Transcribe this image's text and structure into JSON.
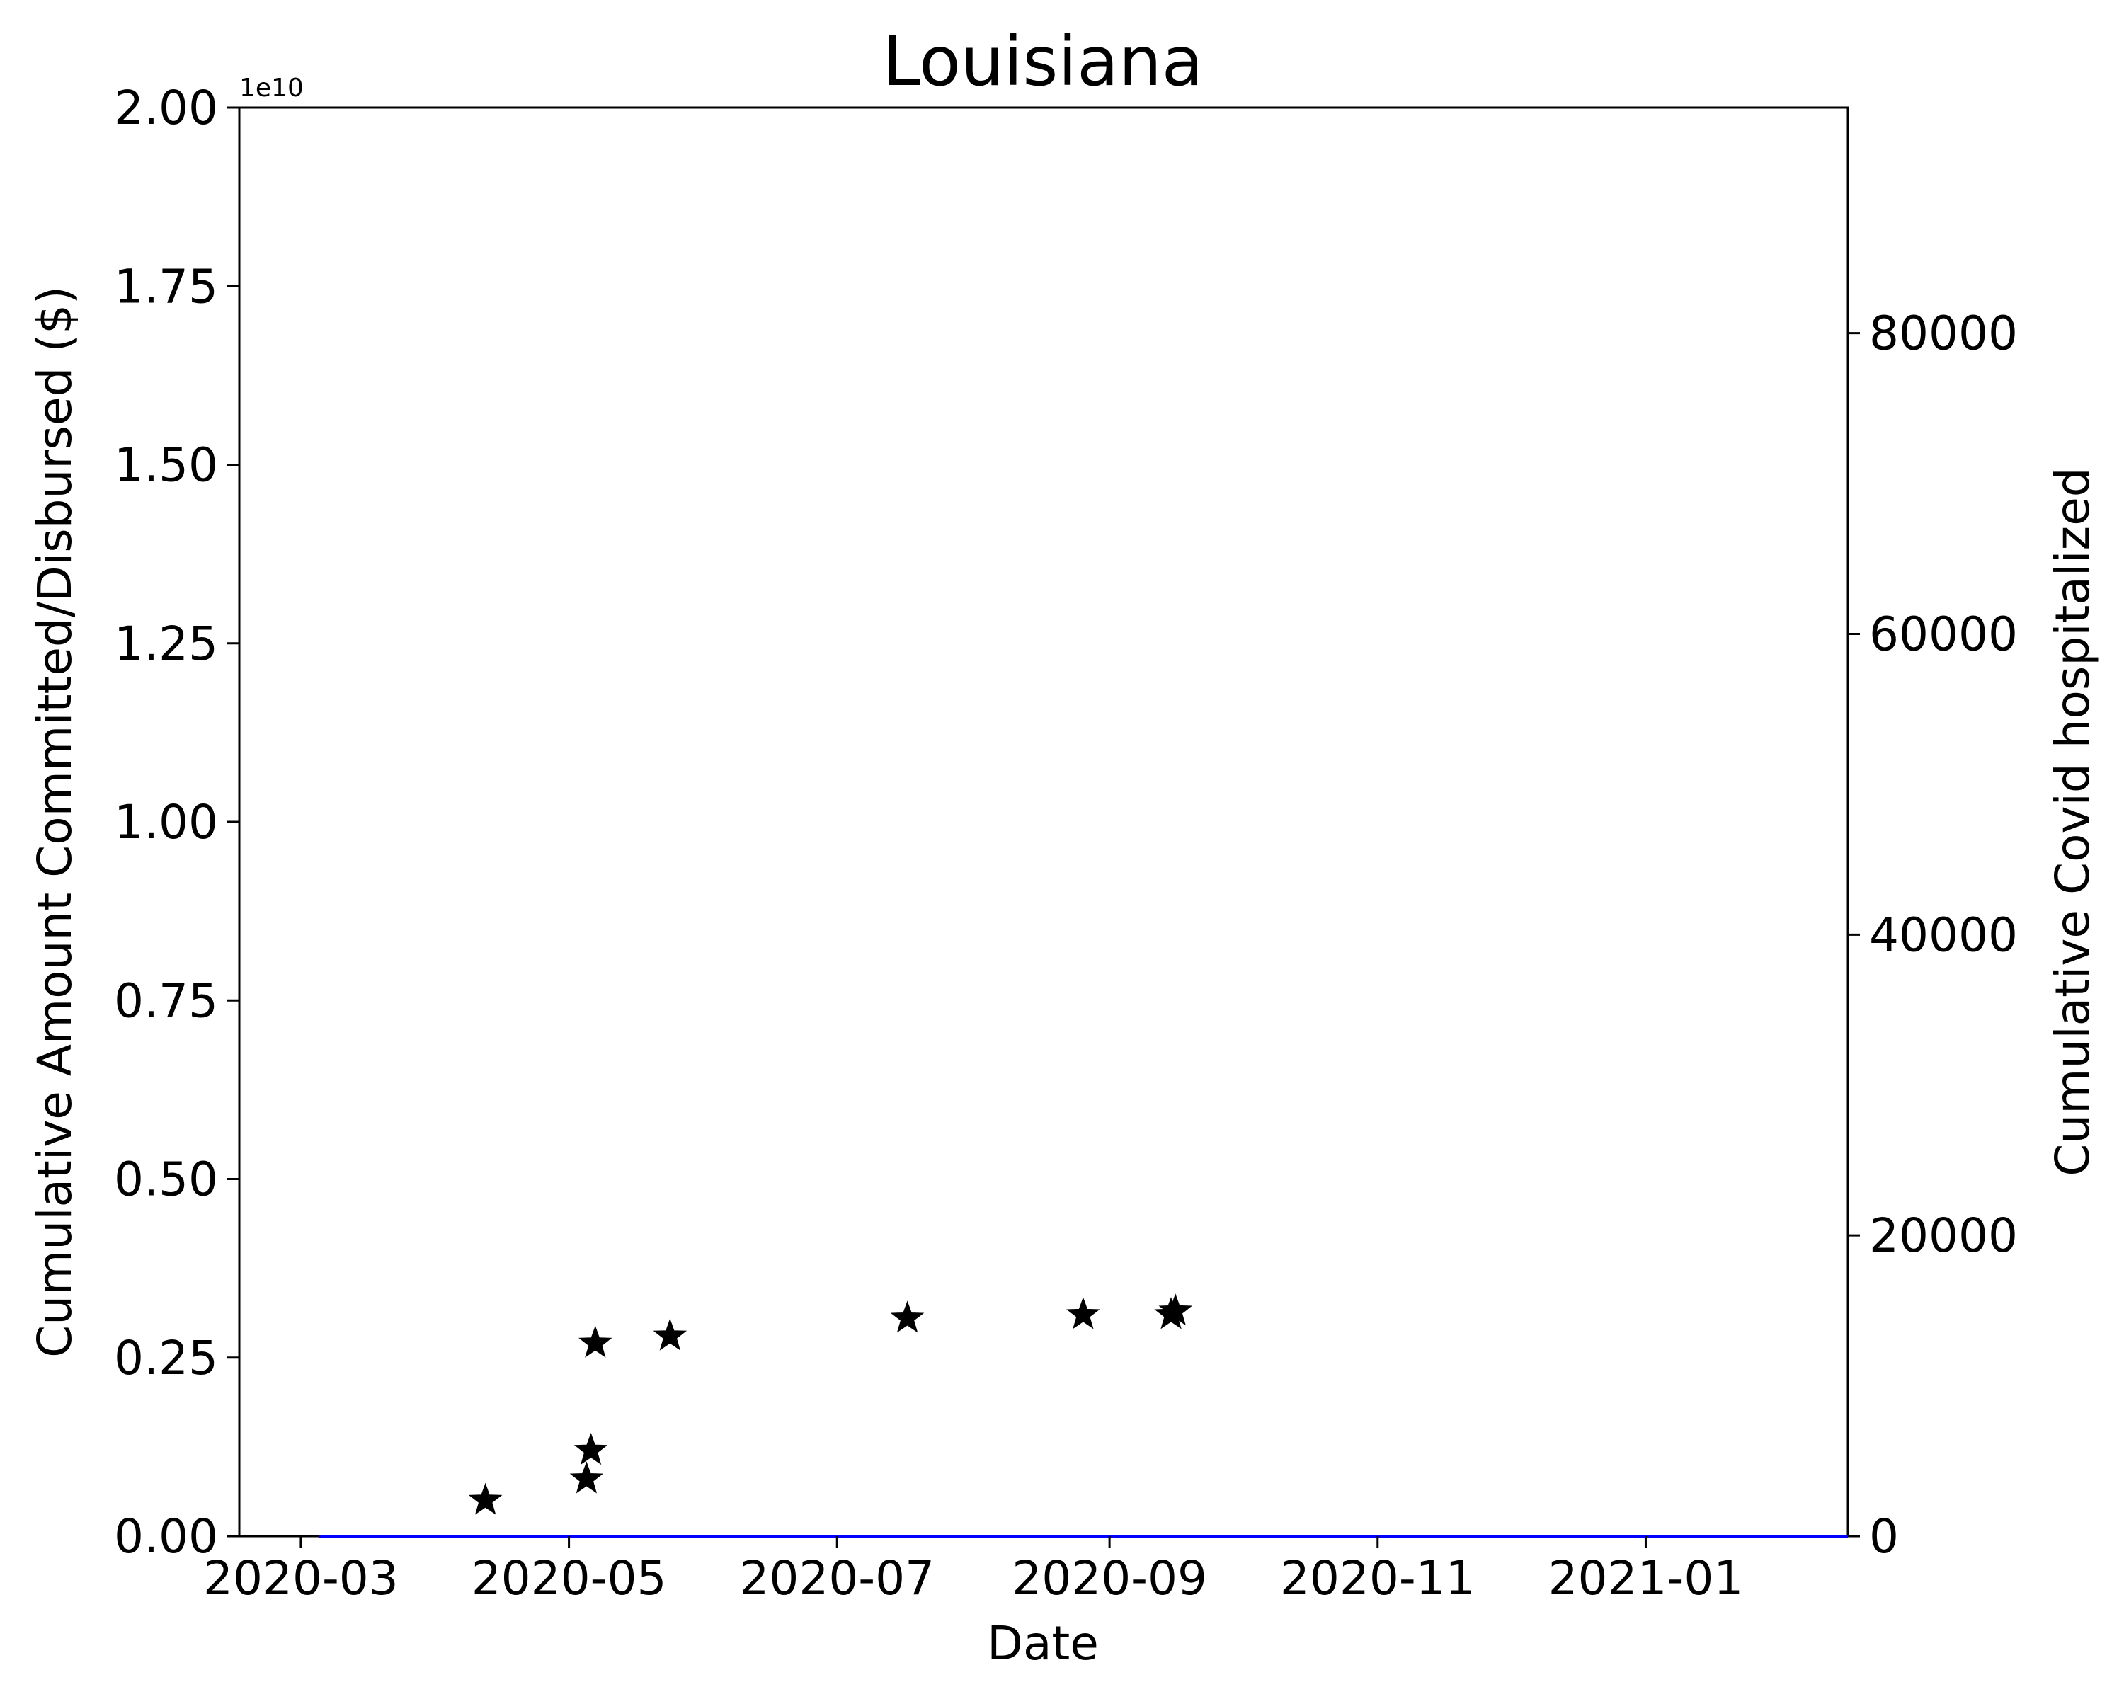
{
  "chart_data": {
    "type": "scatter",
    "title": "Louisiana",
    "xlabel": "Date",
    "ylabel": "Cumulative Amount Committed/Disbursed ($)",
    "ylabel_right": "Cumulative Covid hospitalized",
    "y_offset_text": "1e10",
    "x_range": [
      "2020-02-16",
      "2021-02-16"
    ],
    "x_ticks": [
      "2020-03",
      "2020-05",
      "2020-07",
      "2020-09",
      "2020-11",
      "2021-01"
    ],
    "y_range": [
      0,
      20000000000
    ],
    "y_ticks": [
      "0.00",
      "0.25",
      "0.50",
      "0.75",
      "1.00",
      "1.25",
      "1.50",
      "1.75",
      "2.00"
    ],
    "y_right_range": [
      0,
      95000
    ],
    "y_right_ticks": [
      "0",
      "20000",
      "40000",
      "60000",
      "80000"
    ],
    "grid": false,
    "colors": {
      "funding": "#000000",
      "hospitalized": "#0000ff"
    },
    "series": [
      {
        "marker": "star",
        "color": "#000000",
        "axis": "left",
        "points": [
          {
            "x": "2020-04-12",
            "y": 500000000
          },
          {
            "x": "2020-05-05",
            "y": 800000000
          },
          {
            "x": "2020-05-06",
            "y": 1200000000
          },
          {
            "x": "2020-05-07",
            "y": 2700000000
          },
          {
            "x": "2020-05-24",
            "y": 2800000000
          },
          {
            "x": "2020-07-17",
            "y": 3050000000
          },
          {
            "x": "2020-08-26",
            "y": 3100000000
          },
          {
            "x": "2020-09-15",
            "y": 3100000000
          },
          {
            "x": "2020-09-16",
            "y": 3150000000
          }
        ]
      },
      {
        "line": true,
        "color": "#0000ff",
        "axis": "right",
        "points": [
          {
            "x": "2020-03-05",
            "y": 0
          },
          {
            "x": "2021-02-16",
            "y": 0
          }
        ]
      }
    ]
  }
}
